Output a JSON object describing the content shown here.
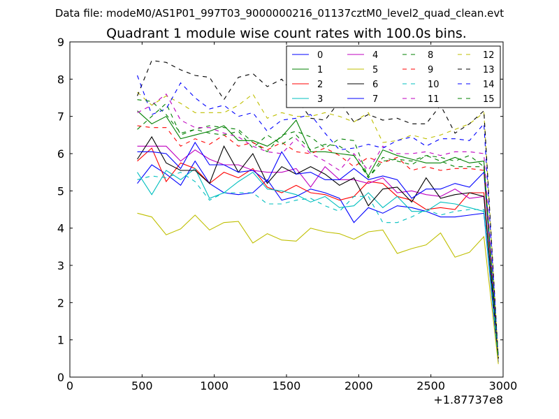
{
  "chart_data": {
    "type": "line",
    "suptitle": "Data file: modeM0/AS1P01_997T03_9000000216_01137cztM0_level2_quad_clean.evt",
    "title": "Quadrant 1 module wise count rates with 100.0s bins.",
    "xlabel": "",
    "ylabel": "",
    "x_offset_label": "+1.87737e8",
    "xlim": [
      0,
      3000
    ],
    "ylim": [
      0,
      9
    ],
    "xticks": [
      0,
      500,
      1000,
      1500,
      2000,
      2500,
      3000
    ],
    "yticks": [
      0,
      1,
      2,
      3,
      4,
      5,
      6,
      7,
      8,
      9
    ],
    "grid": false,
    "legend_position": "top-right",
    "x": [
      467,
      567,
      667,
      767,
      867,
      967,
      1067,
      1167,
      1267,
      1367,
      1467,
      1567,
      1667,
      1767,
      1867,
      1967,
      2067,
      2167,
      2267,
      2367,
      2467,
      2567,
      2667,
      2767,
      2867,
      2967
    ],
    "series": [
      {
        "name": "0",
        "color": "#0000ff",
        "dash": "solid",
        "values": [
          5.2,
          5.7,
          5.45,
          5.15,
          5.8,
          5.2,
          4.95,
          4.9,
          4.95,
          5.3,
          4.75,
          4.85,
          5.05,
          4.95,
          4.8,
          4.15,
          4.55,
          4.4,
          4.6,
          4.55,
          4.45,
          4.3,
          4.3,
          4.35,
          4.4,
          0.4
        ]
      },
      {
        "name": "1",
        "color": "#008000",
        "dash": "solid",
        "values": [
          7.15,
          6.8,
          7.0,
          6.4,
          6.5,
          6.6,
          6.75,
          6.35,
          6.35,
          6.2,
          6.45,
          6.9,
          6.05,
          6.05,
          6.0,
          5.95,
          5.4,
          6.1,
          5.95,
          5.85,
          5.75,
          5.75,
          5.9,
          5.75,
          5.8,
          0.5
        ]
      },
      {
        "name": "2",
        "color": "#ff0000",
        "dash": "solid",
        "values": [
          5.8,
          6.15,
          5.25,
          5.75,
          5.6,
          5.2,
          5.5,
          5.35,
          5.6,
          5.1,
          4.95,
          5.15,
          4.95,
          4.9,
          4.75,
          4.85,
          5.25,
          5.2,
          4.85,
          4.75,
          4.5,
          4.55,
          4.5,
          4.95,
          4.95,
          0.5
        ]
      },
      {
        "name": "3",
        "color": "#00bfbf",
        "dash": "solid",
        "values": [
          5.5,
          4.9,
          5.55,
          5.3,
          5.6,
          4.8,
          4.95,
          5.25,
          5.5,
          5.05,
          5.0,
          4.9,
          4.7,
          4.85,
          4.55,
          4.6,
          4.95,
          4.55,
          4.85,
          4.45,
          4.45,
          4.7,
          4.65,
          4.55,
          4.45,
          0.5
        ]
      },
      {
        "name": "4",
        "color": "#bf00bf",
        "dash": "solid",
        "values": [
          6.2,
          6.2,
          6.2,
          5.8,
          6.1,
          5.85,
          5.7,
          5.7,
          5.55,
          5.5,
          5.5,
          5.6,
          5.1,
          5.65,
          5.3,
          5.3,
          5.2,
          5.35,
          4.95,
          5.0,
          4.9,
          4.85,
          5.05,
          4.8,
          4.85,
          0.5
        ]
      },
      {
        "name": "5",
        "color": "#bfbf00",
        "dash": "solid",
        "values": [
          4.4,
          4.3,
          3.82,
          3.98,
          4.35,
          3.95,
          4.15,
          4.18,
          3.6,
          3.85,
          3.68,
          3.65,
          4.0,
          3.9,
          3.85,
          3.7,
          3.9,
          3.95,
          3.32,
          3.45,
          3.55,
          3.87,
          3.22,
          3.35,
          3.77,
          0.35
        ]
      },
      {
        "name": "6",
        "color": "#000000",
        "dash": "solid",
        "values": [
          5.85,
          6.45,
          5.75,
          5.55,
          5.55,
          5.2,
          6.2,
          5.5,
          6.0,
          5.2,
          5.65,
          5.45,
          5.65,
          5.45,
          5.15,
          5.35,
          4.6,
          5.05,
          5.1,
          4.7,
          5.35,
          4.8,
          4.9,
          4.95,
          4.85,
          0.5
        ]
      },
      {
        "name": "7",
        "color": "#0000ff",
        "dash": "solid",
        "values": [
          6.05,
          6.05,
          6.0,
          5.6,
          6.3,
          5.7,
          5.7,
          5.5,
          5.55,
          5.25,
          6.05,
          5.45,
          5.5,
          5.3,
          5.3,
          5.6,
          5.3,
          5.4,
          5.3,
          4.8,
          5.05,
          5.05,
          5.2,
          5.1,
          5.5,
          0.5
        ]
      },
      {
        "name": "8",
        "color": "#008000",
        "dash": "dashed",
        "values": [
          6.65,
          7.0,
          7.35,
          6.5,
          6.65,
          6.75,
          6.7,
          6.65,
          6.3,
          6.05,
          6.5,
          6.6,
          6.45,
          6.15,
          6.4,
          6.35,
          5.35,
          5.8,
          5.85,
          5.8,
          5.95,
          5.9,
          5.8,
          5.95,
          5.65,
          0.5
        ]
      },
      {
        "name": "9",
        "color": "#ff0000",
        "dash": "dashed",
        "values": [
          6.75,
          6.7,
          6.7,
          6.2,
          6.4,
          6.25,
          6.5,
          6.2,
          6.3,
          6.1,
          6.3,
          6.05,
          6.0,
          6.15,
          5.95,
          5.65,
          5.9,
          5.75,
          5.9,
          5.55,
          5.65,
          5.55,
          5.6,
          5.6,
          5.55,
          0.5
        ]
      },
      {
        "name": "10",
        "color": "#00bfbf",
        "dash": "dashed",
        "values": [
          5.3,
          5.4,
          5.35,
          5.5,
          5.25,
          4.75,
          4.95,
          4.95,
          4.95,
          4.65,
          4.65,
          4.75,
          4.8,
          4.6,
          4.45,
          4.85,
          4.85,
          4.15,
          4.15,
          4.3,
          4.5,
          4.35,
          4.45,
          4.5,
          4.5,
          0.5
        ]
      },
      {
        "name": "11",
        "color": "#bf00bf",
        "dash": "dashed",
        "values": [
          7.1,
          7.3,
          7.6,
          6.9,
          6.7,
          6.7,
          6.55,
          6.45,
          6.2,
          6.05,
          6.0,
          6.4,
          6.0,
          5.8,
          5.55,
          6.0,
          5.55,
          6.2,
          6.0,
          6.0,
          6.05,
          5.95,
          6.05,
          6.05,
          6.0,
          0.5
        ]
      },
      {
        "name": "12",
        "color": "#bfbf00",
        "dash": "dashed",
        "values": [
          7.65,
          7.3,
          7.55,
          7.35,
          7.1,
          7.1,
          7.1,
          7.3,
          7.6,
          6.95,
          7.1,
          7.0,
          7.0,
          7.1,
          7.0,
          6.85,
          7.1,
          6.3,
          6.35,
          6.5,
          6.4,
          6.5,
          6.65,
          6.8,
          7.1,
          0.5
        ]
      },
      {
        "name": "13",
        "color": "#000000",
        "dash": "dashed",
        "values": [
          7.55,
          8.5,
          8.45,
          8.25,
          8.1,
          8.05,
          7.45,
          8.05,
          8.15,
          7.8,
          8.0,
          7.5,
          6.95,
          6.9,
          7.4,
          6.85,
          7.05,
          6.9,
          6.95,
          6.8,
          6.8,
          7.3,
          6.55,
          6.8,
          7.15,
          0.5
        ]
      },
      {
        "name": "14",
        "color": "#0000ff",
        "dash": "dashed",
        "values": [
          8.1,
          7.05,
          7.2,
          7.9,
          7.5,
          7.2,
          7.3,
          7.0,
          7.1,
          6.6,
          6.9,
          6.95,
          7.05,
          6.55,
          6.1,
          6.15,
          6.25,
          6.15,
          6.35,
          6.45,
          6.2,
          6.4,
          6.4,
          6.35,
          6.8,
          0.5
        ]
      },
      {
        "name": "15",
        "color": "#008000",
        "dash": "dashed",
        "values": [
          7.45,
          7.4,
          7.05,
          6.55,
          6.65,
          6.55,
          6.5,
          6.6,
          6.15,
          6.5,
          6.25,
          6.5,
          6.1,
          6.25,
          6.2,
          5.95,
          5.35,
          5.9,
          5.8,
          5.7,
          5.95,
          5.8,
          5.65,
          5.65,
          5.65,
          0.5
        ]
      }
    ]
  }
}
